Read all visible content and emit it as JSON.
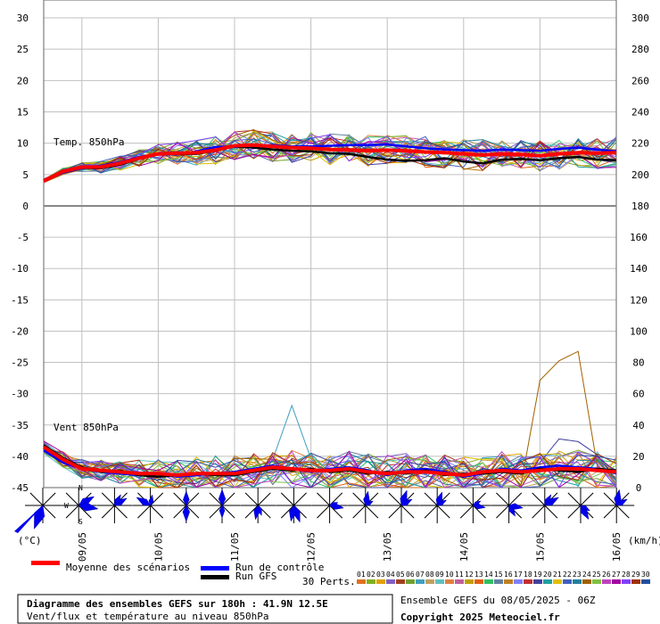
{
  "chart_data": [
    {
      "type": "line",
      "panel": "temperature",
      "label": "Temp. 850hPa",
      "left_axis": {
        "ticks": [
          "30",
          "25",
          "20",
          "15",
          "10",
          "5",
          "0"
        ],
        "unit": "(°C)"
      },
      "right_axis": {
        "ticks": [
          "300",
          "280",
          "260",
          "240",
          "220",
          "200",
          "180"
        ]
      },
      "ylim": [
        0,
        30
      ],
      "x_dates": [
        "09/05",
        "10/05",
        "11/05",
        "12/05",
        "13/05",
        "14/05",
        "15/05",
        "16/05"
      ],
      "x_range_hours": [
        0,
        180
      ],
      "series": [
        {
          "name": "Moyenne des scénarios",
          "color": "#ff0000",
          "x": [
            0,
            6,
            12,
            18,
            24,
            30,
            36,
            42,
            48,
            54,
            60,
            66,
            72,
            78,
            84,
            90,
            96,
            102,
            108,
            114,
            120,
            126,
            132,
            138,
            144,
            150,
            156,
            162,
            168,
            174,
            180
          ],
          "y": [
            4,
            5.5,
            6.2,
            6.2,
            6.8,
            7.6,
            8.3,
            8.4,
            8.5,
            8.9,
            9.6,
            9.7,
            9.5,
            9.3,
            9.2,
            9.0,
            8.9,
            8.8,
            8.9,
            8.8,
            8.6,
            8.5,
            8.3,
            8.1,
            8.3,
            8.2,
            8.0,
            8.3,
            8.5,
            8.4,
            8.5
          ]
        },
        {
          "name": "Run de contrôle",
          "color": "#0000ff",
          "x": [
            0,
            6,
            12,
            18,
            24,
            30,
            36,
            42,
            48,
            54,
            60,
            66,
            72,
            78,
            84,
            90,
            96,
            102,
            108,
            114,
            120,
            126,
            132,
            138,
            144,
            150,
            156,
            162,
            168,
            174,
            180
          ],
          "y": [
            4,
            5.3,
            6.0,
            6.4,
            7.0,
            7.8,
            8.2,
            8.2,
            8.7,
            9.4,
            9.4,
            9.6,
            9.7,
            9.5,
            9.5,
            9.6,
            9.7,
            9.7,
            9.8,
            9.5,
            9.2,
            9.0,
            8.9,
            8.8,
            9.0,
            8.9,
            8.8,
            9.1,
            9.3,
            9.0,
            8.7
          ]
        },
        {
          "name": "Run GFS",
          "color": "#000000",
          "x": [
            0,
            6,
            12,
            18,
            24,
            30,
            36,
            42,
            48,
            54,
            60,
            66,
            72,
            78,
            84,
            90,
            96,
            102,
            108,
            114,
            120,
            126,
            132,
            138,
            144,
            150,
            156,
            162,
            168,
            174,
            180
          ],
          "y": [
            4,
            5.6,
            6.1,
            6.0,
            6.6,
            7.5,
            8.2,
            8.3,
            8.3,
            8.8,
            9.5,
            9.3,
            9.0,
            8.8,
            8.7,
            8.4,
            8.3,
            7.8,
            7.4,
            7.2,
            7.3,
            7.6,
            7.1,
            6.8,
            7.4,
            7.5,
            7.3,
            7.6,
            7.8,
            7.4,
            7.3
          ]
        }
      ]
    },
    {
      "type": "line",
      "panel": "wind",
      "label": "Vent 850hPa",
      "left_axis": {
        "ticks": [
          "-5",
          "-10",
          "-15",
          "-20",
          "-25",
          "-30",
          "-35",
          "-40",
          "-45"
        ]
      },
      "right_axis": {
        "ticks": [
          "160",
          "140",
          "120",
          "100",
          "80",
          "60",
          "40",
          "20",
          "0"
        ],
        "unit": "(km/h)"
      },
      "ylim": [
        0,
        180
      ],
      "x_dates": [
        "09/05",
        "10/05",
        "11/05",
        "12/05",
        "13/05",
        "14/05",
        "15/05",
        "16/05"
      ],
      "x_range_hours": [
        0,
        180
      ],
      "series": [
        {
          "name": "Moyenne des scénarios",
          "color": "#ff0000",
          "x": [
            0,
            6,
            12,
            18,
            24,
            30,
            36,
            42,
            48,
            54,
            60,
            66,
            72,
            78,
            84,
            90,
            96,
            102,
            108,
            114,
            120,
            126,
            132,
            138,
            144,
            150,
            156,
            162,
            168,
            174,
            180
          ],
          "y": [
            26,
            18,
            12,
            11,
            10,
            9,
            9,
            8,
            9,
            9,
            9,
            11,
            13,
            12,
            11,
            11,
            12,
            10,
            9,
            10,
            10,
            9,
            8,
            10,
            11,
            10,
            11,
            12,
            12,
            11,
            10
          ]
        },
        {
          "name": "Run de contrôle",
          "color": "#0000ff",
          "x": [
            0,
            6,
            12,
            18,
            24,
            30,
            36,
            42,
            48,
            54,
            60,
            66,
            72,
            78,
            84,
            90,
            96,
            102,
            108,
            114,
            120,
            126,
            132,
            138,
            144,
            150,
            156,
            162,
            168,
            174,
            180
          ],
          "y": [
            24,
            16,
            12,
            10,
            9,
            8,
            9,
            7,
            8,
            9,
            10,
            12,
            14,
            12,
            10,
            12,
            13,
            11,
            8,
            11,
            12,
            10,
            7,
            9,
            12,
            11,
            13,
            14,
            13,
            12,
            9
          ]
        },
        {
          "name": "Run GFS",
          "color": "#000000",
          "x": [
            0,
            6,
            12,
            18,
            24,
            30,
            36,
            42,
            48,
            54,
            60,
            66,
            72,
            78,
            84,
            90,
            96,
            102,
            108,
            114,
            120,
            126,
            132,
            138,
            144,
            150,
            156,
            162,
            168,
            174,
            180
          ],
          "y": [
            27,
            19,
            13,
            10,
            11,
            8,
            7,
            8,
            9,
            8,
            8,
            10,
            12,
            11,
            12,
            10,
            11,
            9,
            10,
            9,
            11,
            8,
            9,
            9,
            10,
            9,
            12,
            11,
            10,
            12,
            11
          ]
        }
      ],
      "wind_rose": {
        "cardinal_labels": [
          "N",
          "W",
          "S"
        ]
      }
    }
  ],
  "legend": {
    "mean_label": "Moyenne des scénarios",
    "control_label": "Run de contrôle",
    "gfs_label": "Run GFS",
    "perts_label": "30 Perts.",
    "pert_numbers": [
      "01",
      "02",
      "03",
      "04",
      "05",
      "06",
      "07",
      "08",
      "09",
      "10",
      "11",
      "12",
      "13",
      "14",
      "15",
      "16",
      "17",
      "18",
      "19",
      "20",
      "21",
      "22",
      "23",
      "24",
      "25",
      "26",
      "27",
      "28",
      "29",
      "30"
    ],
    "pert_colors": [
      "#e07020",
      "#80b020",
      "#e0a000",
      "#8060c0",
      "#a04020",
      "#70a030",
      "#40a0c0",
      "#c0a060",
      "#60c0c0",
      "#e08040",
      "#c060a0",
      "#c0a000",
      "#e06010",
      "#30c060",
      "#6080a0",
      "#c08020",
      "#8080ff",
      "#c03030",
      "#4040a0",
      "#20a0a0",
      "#e0c000",
      "#4060c0",
      "#2080a0",
      "#a06000",
      "#80c040",
      "#c040c0",
      "#a000a0",
      "#8040ff",
      "#a03000",
      "#2050a0"
    ]
  },
  "footer": {
    "title": "Diagramme des ensembles GEFS sur 180h : 41.9N 12.5E",
    "subtitle": "Vent/flux et température au niveau 850hPa",
    "run": "Ensemble GEFS du 08/05/2025 - 06Z",
    "copyright": "Copyright 2025 Meteociel.fr"
  }
}
